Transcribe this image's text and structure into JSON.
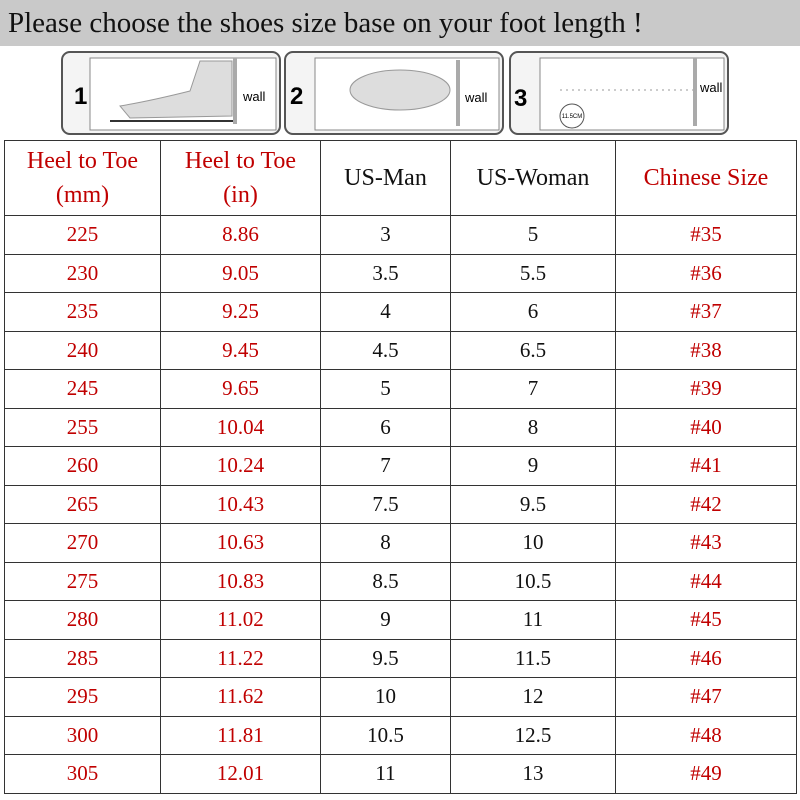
{
  "header": {
    "title": "Please choose the shoes size base on your foot length !"
  },
  "steps": [
    {
      "number": "1",
      "label": "wall"
    },
    {
      "number": "2",
      "label": "wall"
    },
    {
      "number": "3",
      "label": "wall",
      "note": "11.5CM"
    }
  ],
  "table": {
    "headers": [
      [
        "Heel to Toe",
        "(mm)"
      ],
      [
        "Heel to Toe",
        "(in)"
      ],
      [
        "US-Man"
      ],
      [
        "US-Woman"
      ],
      [
        "Chinese Size"
      ]
    ],
    "rows": [
      [
        "225",
        "8.86",
        "3",
        "5",
        "#35"
      ],
      [
        "230",
        "9.05",
        "3.5",
        "5.5",
        "#36"
      ],
      [
        "235",
        "9.25",
        "4",
        "6",
        "#37"
      ],
      [
        "240",
        "9.45",
        "4.5",
        "6.5",
        "#38"
      ],
      [
        "245",
        "9.65",
        "5",
        "7",
        "#39"
      ],
      [
        "255",
        "10.04",
        "6",
        "8",
        "#40"
      ],
      [
        "260",
        "10.24",
        "7",
        "9",
        "#41"
      ],
      [
        "265",
        "10.43",
        "7.5",
        "9.5",
        "#42"
      ],
      [
        "270",
        "10.63",
        "8",
        "10",
        "#43"
      ],
      [
        "275",
        "10.83",
        "8.5",
        "10.5",
        "#44"
      ],
      [
        "280",
        "11.02",
        "9",
        "11",
        "#45"
      ],
      [
        "285",
        "11.22",
        "9.5",
        "11.5",
        "#46"
      ],
      [
        "295",
        "11.62",
        "10",
        "12",
        "#47"
      ],
      [
        "300",
        "11.81",
        "10.5",
        "12.5",
        "#48"
      ],
      [
        "305",
        "12.01",
        "11",
        "13",
        "#49"
      ]
    ]
  }
}
